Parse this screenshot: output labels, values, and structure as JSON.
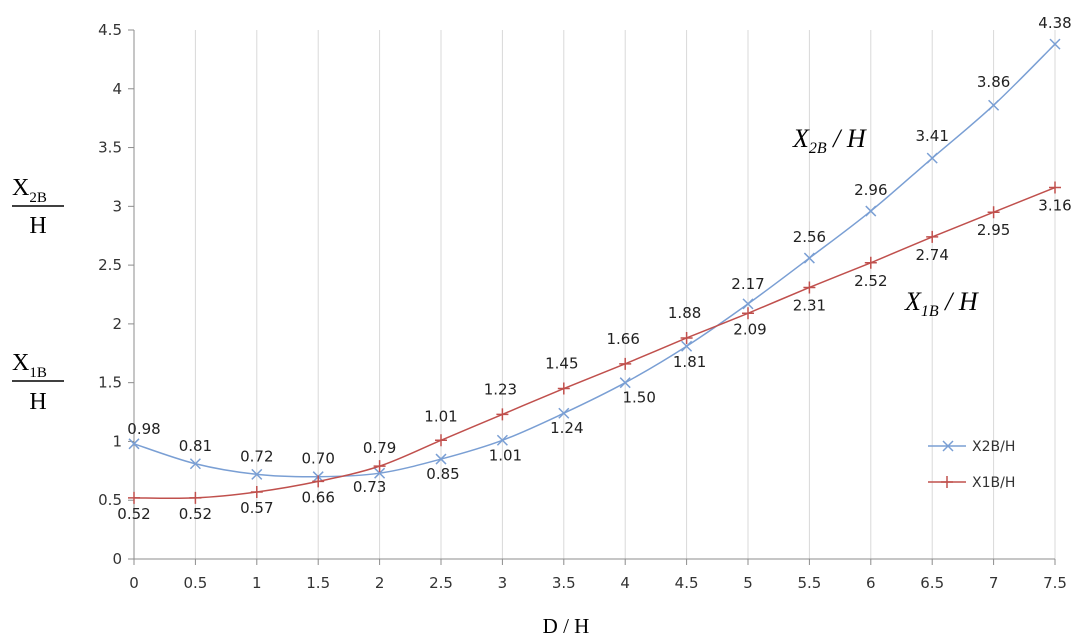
{
  "chart_data": {
    "type": "line",
    "x": [
      0,
      0.5,
      1,
      1.5,
      2,
      2.5,
      3,
      3.5,
      4,
      4.5,
      5,
      5.5,
      6,
      6.5,
      7,
      7.5
    ],
    "xlim": [
      0,
      7.5
    ],
    "ylim": [
      0,
      4.5
    ],
    "x_ticks": [
      "0",
      "0.5",
      "1",
      "1.5",
      "2",
      "2.5",
      "3",
      "3.5",
      "4",
      "4.5",
      "5",
      "5.5",
      "6",
      "6.5",
      "7",
      "7.5"
    ],
    "y_ticks": [
      "0",
      "0.5",
      "1",
      "1.5",
      "2",
      "2.5",
      "3",
      "3.5",
      "4",
      "4.5"
    ],
    "xlabel": "D / H",
    "ylabel_upper": {
      "numerator": "X",
      "sub": "2B",
      "denominator": "H"
    },
    "ylabel_lower": {
      "numerator": "X",
      "sub": "1B",
      "denominator": "H"
    },
    "grid": "vertical",
    "legend_position": "right",
    "series": [
      {
        "name": "X2B/H",
        "marker": "x",
        "color": "#7a9fd4",
        "values": [
          0.98,
          0.81,
          0.72,
          0.7,
          0.73,
          0.85,
          1.01,
          1.24,
          1.5,
          1.81,
          2.17,
          2.56,
          2.96,
          3.41,
          3.86,
          4.38
        ],
        "labels": [
          "0.98",
          "0.81",
          "0.72",
          "0.70",
          "0.73",
          "0.85",
          "1.01",
          "1.24",
          "1.50",
          "1.81",
          "2.17",
          "2.56",
          "2.96",
          "3.41",
          "3.86",
          "4.38"
        ],
        "curve_label": {
          "main": "X",
          "sub": "2B",
          "tail": " / H"
        }
      },
      {
        "name": "X1B/H",
        "marker": "+",
        "color": "#c0504d",
        "values": [
          0.52,
          0.52,
          0.57,
          0.66,
          0.79,
          1.01,
          1.23,
          1.45,
          1.66,
          1.88,
          2.09,
          2.31,
          2.52,
          2.74,
          2.95,
          3.16
        ],
        "labels": [
          "0.52",
          "0.52",
          "0.57",
          "0.66",
          "0.79",
          "1.01",
          "1.23",
          "1.45",
          "1.66",
          "1.88",
          "2.09",
          "2.31",
          "2.52",
          "2.74",
          "2.95",
          "3.16"
        ],
        "curve_label": {
          "main": "X",
          "sub": "1B",
          "tail": " / H"
        }
      }
    ]
  }
}
